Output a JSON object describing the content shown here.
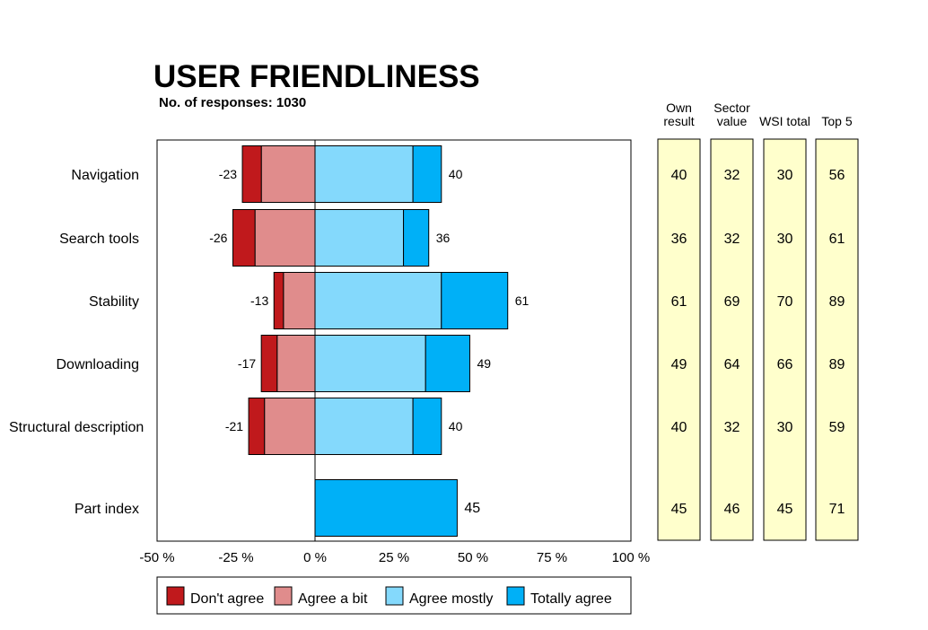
{
  "chart_data": {
    "type": "bar",
    "orientation": "horizontal",
    "stacked": "diverging",
    "title": "USER FRIENDLINESS",
    "subtitle": "No. of responses: 1030",
    "categories": [
      "Navigation",
      "Search tools",
      "Stability",
      "Downloading",
      "Structural description",
      "Part index"
    ],
    "series": [
      {
        "name": "Don't agree",
        "color": "#c0191c",
        "values": [
          -6,
          -7,
          -3,
          -5,
          -5,
          0
        ]
      },
      {
        "name": "Agree a bit",
        "color": "#e08c8c",
        "values": [
          -17,
          -19,
          -10,
          -12,
          -16,
          0
        ]
      },
      {
        "name": "Agree mostly",
        "color": "#84d9fc",
        "values": [
          31,
          28,
          40,
          35,
          31,
          0
        ]
      },
      {
        "name": "Totally agree",
        "color": "#00b0f7",
        "values": [
          9,
          8,
          21,
          14,
          9,
          45
        ]
      }
    ],
    "negative_totals": [
      "-23",
      "-26",
      "-13",
      "-17",
      "-21",
      ""
    ],
    "positive_totals": [
      "40",
      "36",
      "61",
      "49",
      "40",
      "45"
    ],
    "xlim": [
      -50,
      100
    ],
    "xticks": [
      "-50 %",
      "-25 %",
      "0 %",
      "25 %",
      "50 %",
      "75 %",
      "100 %"
    ],
    "legend_position": "bottom",
    "comparison_columns": [
      {
        "header": [
          "Own",
          "result"
        ],
        "values": [
          "40",
          "36",
          "61",
          "49",
          "40",
          "45"
        ]
      },
      {
        "header": [
          "Sector",
          "value"
        ],
        "values": [
          "32",
          "32",
          "69",
          "64",
          "32",
          "46"
        ]
      },
      {
        "header": [
          "WSI total"
        ],
        "values": [
          "30",
          "30",
          "70",
          "66",
          "30",
          "45"
        ]
      },
      {
        "header": [
          "Top 5"
        ],
        "values": [
          "56",
          "61",
          "89",
          "89",
          "59",
          "71"
        ]
      }
    ],
    "column_fill": "#ffffcc"
  }
}
